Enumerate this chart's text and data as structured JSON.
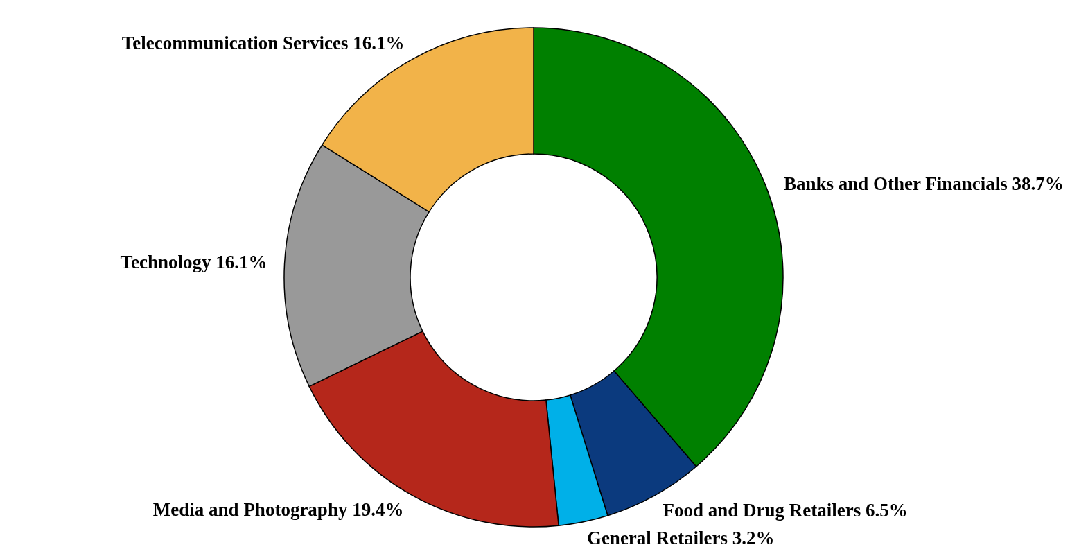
{
  "chart_data": {
    "type": "donut",
    "categories": [
      "Banks and Other Financials",
      "Food and Drug Retailers",
      "General Retailers",
      "Media and Photography",
      "Technology",
      "Telecommunication Services"
    ],
    "values": [
      38.7,
      6.5,
      3.2,
      19.4,
      16.1,
      16.1
    ],
    "value_labels": [
      "38.7%",
      "6.5%",
      "3.2%",
      "19.4%",
      "16.1%",
      "16.1%"
    ],
    "colors": [
      "#008000",
      "#0b3a7e",
      "#00b0e8",
      "#b5271b",
      "#999999",
      "#f2b349"
    ],
    "legend": false
  }
}
